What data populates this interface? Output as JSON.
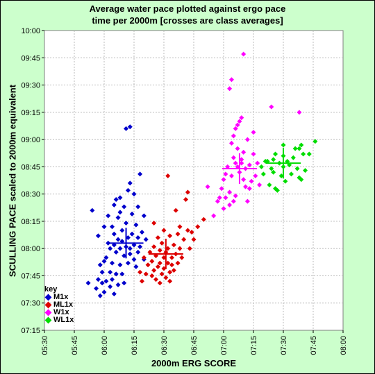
{
  "chart_data": {
    "type": "scatter",
    "title": [
      "Average water pace plotted against ergo pace",
      "time per 2000m [crosses are class averages]"
    ],
    "xlabel": "2000m ERG SCORE",
    "ylabel": "SCULLING PACE scaled to 2000m equivalent",
    "x_ticks": [
      "05:30",
      "05:45",
      "06:00",
      "06:15",
      "06:30",
      "06:45",
      "07:00",
      "07:15",
      "07:30",
      "07:45",
      "08:00"
    ],
    "y_ticks": [
      "10:00",
      "09:45",
      "09:30",
      "09:15",
      "09:00",
      "08:45",
      "08:30",
      "08:15",
      "08:00",
      "07:45",
      "07:30",
      "07:15"
    ],
    "xlim": [
      "05:30",
      "08:00"
    ],
    "ylim": [
      "07:15",
      "10:00"
    ],
    "grid": true,
    "legend_title": "key",
    "legend_position": "bottom-left",
    "series": [
      {
        "name": "M1x",
        "color": "#0000cc",
        "mean": [
          "06:11",
          "08:03"
        ],
        "points": [
          [
            "05:52",
            "07:41"
          ],
          [
            "05:54",
            "08:21"
          ],
          [
            "05:56",
            "07:38"
          ],
          [
            "05:57",
            "07:43"
          ],
          [
            "05:57",
            "08:07"
          ],
          [
            "05:58",
            "07:34"
          ],
          [
            "05:58",
            "07:51"
          ],
          [
            "05:59",
            "07:41"
          ],
          [
            "05:59",
            "07:47"
          ],
          [
            "06:00",
            "07:36"
          ],
          [
            "06:00",
            "07:53"
          ],
          [
            "06:00",
            "08:12"
          ],
          [
            "06:01",
            "07:42"
          ],
          [
            "06:01",
            "07:55"
          ],
          [
            "06:02",
            "08:03"
          ],
          [
            "06:02",
            "08:18"
          ],
          [
            "06:03",
            "07:39"
          ],
          [
            "06:03",
            "07:47"
          ],
          [
            "06:03",
            "08:00"
          ],
          [
            "06:04",
            "07:43"
          ],
          [
            "06:04",
            "07:52"
          ],
          [
            "06:04",
            "08:12"
          ],
          [
            "06:05",
            "08:02"
          ],
          [
            "06:05",
            "08:08"
          ],
          [
            "06:05",
            "07:35"
          ],
          [
            "06:06",
            "07:46"
          ],
          [
            "06:06",
            "07:58"
          ],
          [
            "06:06",
            "08:27"
          ],
          [
            "06:07",
            "07:40"
          ],
          [
            "06:07",
            "08:05"
          ],
          [
            "06:07",
            "08:17"
          ],
          [
            "06:08",
            "07:51"
          ],
          [
            "06:08",
            "08:00"
          ],
          [
            "06:08",
            "08:20"
          ],
          [
            "06:09",
            "07:46"
          ],
          [
            "06:09",
            "08:04"
          ],
          [
            "06:09",
            "08:10"
          ],
          [
            "06:10",
            "07:56"
          ],
          [
            "06:10",
            "08:23"
          ],
          [
            "06:10",
            "07:41"
          ],
          [
            "06:11",
            "08:01"
          ],
          [
            "06:11",
            "08:14"
          ],
          [
            "06:12",
            "07:52"
          ],
          [
            "06:12",
            "08:06"
          ],
          [
            "06:12",
            "08:32"
          ],
          [
            "06:13",
            "08:00"
          ],
          [
            "06:13",
            "08:36"
          ],
          [
            "06:13",
            "07:57"
          ],
          [
            "06:14",
            "08:08"
          ],
          [
            "06:14",
            "08:19"
          ],
          [
            "06:15",
            "07:54"
          ],
          [
            "06:15",
            "08:02"
          ],
          [
            "06:16",
            "08:13"
          ],
          [
            "06:16",
            "07:50"
          ],
          [
            "06:17",
            "08:06"
          ],
          [
            "06:17",
            "08:23"
          ],
          [
            "06:17",
            "07:58"
          ],
          [
            "06:18",
            "08:41"
          ],
          [
            "06:18",
            "08:01"
          ],
          [
            "06:19",
            "08:09"
          ],
          [
            "06:20",
            "08:18"
          ],
          [
            "06:20",
            "07:54"
          ],
          [
            "06:21",
            "08:05"
          ],
          [
            "06:11",
            "09:06"
          ],
          [
            "06:13",
            "09:07"
          ],
          [
            "06:08",
            "08:28"
          ],
          [
            "06:05",
            "08:24"
          ],
          [
            "06:15",
            "08:30"
          ]
        ]
      },
      {
        "name": "ML1x",
        "color": "#dd0000",
        "mean": [
          "06:31",
          "07:57"
        ],
        "points": [
          [
            "06:18",
            "07:47"
          ],
          [
            "06:19",
            "07:42"
          ],
          [
            "06:20",
            "07:55"
          ],
          [
            "06:21",
            "07:46"
          ],
          [
            "06:22",
            "07:51"
          ],
          [
            "06:23",
            "07:58"
          ],
          [
            "06:24",
            "07:45"
          ],
          [
            "06:24",
            "07:53"
          ],
          [
            "06:25",
            "08:01"
          ],
          [
            "06:25",
            "07:48"
          ],
          [
            "06:26",
            "07:56"
          ],
          [
            "06:26",
            "07:43"
          ],
          [
            "06:27",
            "07:50"
          ],
          [
            "06:27",
            "08:06"
          ],
          [
            "06:28",
            "07:52"
          ],
          [
            "06:28",
            "07:59"
          ],
          [
            "06:29",
            "07:46"
          ],
          [
            "06:29",
            "08:03"
          ],
          [
            "06:30",
            "07:55"
          ],
          [
            "06:30",
            "07:49"
          ],
          [
            "06:30",
            "08:10"
          ],
          [
            "06:31",
            "07:58"
          ],
          [
            "06:31",
            "07:44"
          ],
          [
            "06:32",
            "07:52"
          ],
          [
            "06:32",
            "08:00"
          ],
          [
            "06:33",
            "07:47"
          ],
          [
            "06:33",
            "08:07"
          ],
          [
            "06:34",
            "07:55"
          ],
          [
            "06:34",
            "07:51"
          ],
          [
            "06:35",
            "08:02"
          ],
          [
            "06:35",
            "07:48"
          ],
          [
            "06:36",
            "07:57"
          ],
          [
            "06:37",
            "08:08"
          ],
          [
            "06:37",
            "07:52"
          ],
          [
            "06:38",
            "08:12"
          ],
          [
            "06:38",
            "08:00"
          ],
          [
            "06:39",
            "07:55"
          ],
          [
            "06:40",
            "08:05"
          ],
          [
            "06:41",
            "08:27"
          ],
          [
            "06:42",
            "08:10"
          ],
          [
            "06:43",
            "08:00"
          ],
          [
            "06:44",
            "08:09"
          ],
          [
            "06:45",
            "08:05"
          ],
          [
            "06:47",
            "08:12"
          ],
          [
            "06:50",
            "08:16"
          ],
          [
            "06:32",
            "08:40"
          ],
          [
            "06:36",
            "08:21"
          ],
          [
            "06:42",
            "08:31"
          ],
          [
            "06:25",
            "08:14"
          ],
          [
            "06:28",
            "07:41"
          ],
          [
            "06:33",
            "07:42"
          ]
        ]
      },
      {
        "name": "W1x",
        "color": "#ff00ff",
        "mean": [
          "07:08",
          "08:44"
        ],
        "points": [
          [
            "06:52",
            "08:34"
          ],
          [
            "06:55",
            "08:18"
          ],
          [
            "06:57",
            "08:26"
          ],
          [
            "06:59",
            "08:33"
          ],
          [
            "07:00",
            "08:38"
          ],
          [
            "07:00",
            "08:22"
          ],
          [
            "07:01",
            "08:28"
          ],
          [
            "07:02",
            "08:45"
          ],
          [
            "07:03",
            "08:31"
          ],
          [
            "07:03",
            "08:24"
          ],
          [
            "07:04",
            "08:40"
          ],
          [
            "07:04",
            "08:58"
          ],
          [
            "07:05",
            "08:50"
          ],
          [
            "07:05",
            "09:02"
          ],
          [
            "07:06",
            "08:29"
          ],
          [
            "07:06",
            "08:47"
          ],
          [
            "07:07",
            "09:08"
          ],
          [
            "07:07",
            "08:55"
          ],
          [
            "07:08",
            "08:42"
          ],
          [
            "07:08",
            "09:10"
          ],
          [
            "07:09",
            "08:49"
          ],
          [
            "07:09",
            "09:12"
          ],
          [
            "07:10",
            "08:38"
          ],
          [
            "07:10",
            "08:53"
          ],
          [
            "07:10",
            "09:47"
          ],
          [
            "07:11",
            "08:44"
          ],
          [
            "07:11",
            "08:34"
          ],
          [
            "07:12",
            "08:26"
          ],
          [
            "07:12",
            "09:00"
          ],
          [
            "07:13",
            "08:46"
          ],
          [
            "07:14",
            "08:37"
          ],
          [
            "07:15",
            "08:52"
          ],
          [
            "07:15",
            "09:04"
          ],
          [
            "07:16",
            "08:40"
          ],
          [
            "07:17",
            "08:47"
          ],
          [
            "07:18",
            "08:35"
          ],
          [
            "07:03",
            "09:28"
          ],
          [
            "07:04",
            "09:33"
          ],
          [
            "07:05",
            "08:26"
          ],
          [
            "07:06",
            "09:06"
          ],
          [
            "07:07",
            "08:45"
          ],
          [
            "07:24",
            "09:18"
          ],
          [
            "07:38",
            "09:15"
          ],
          [
            "06:58",
            "08:28"
          ],
          [
            "07:01",
            "08:41"
          ],
          [
            "07:09",
            "08:47"
          ],
          [
            "07:13",
            "08:33"
          ]
        ]
      },
      {
        "name": "WL1x",
        "color": "#00dd00",
        "mean": [
          "07:30",
          "08:47"
        ],
        "points": [
          [
            "07:19",
            "08:45"
          ],
          [
            "07:20",
            "08:41"
          ],
          [
            "07:21",
            "08:48"
          ],
          [
            "07:22",
            "08:48"
          ],
          [
            "07:23",
            "08:35"
          ],
          [
            "07:24",
            "08:44"
          ],
          [
            "07:25",
            "08:49"
          ],
          [
            "07:25",
            "08:42"
          ],
          [
            "07:26",
            "08:33"
          ],
          [
            "07:26",
            "08:52"
          ],
          [
            "07:27",
            "08:32"
          ],
          [
            "07:28",
            "08:47"
          ],
          [
            "07:29",
            "08:40"
          ],
          [
            "07:30",
            "08:57"
          ],
          [
            "07:30",
            "08:51"
          ],
          [
            "07:30",
            "08:45"
          ],
          [
            "07:31",
            "08:37"
          ],
          [
            "07:32",
            "08:48"
          ],
          [
            "07:33",
            "08:46"
          ],
          [
            "07:34",
            "08:41"
          ],
          [
            "07:35",
            "08:50"
          ],
          [
            "07:36",
            "08:55"
          ],
          [
            "07:37",
            "08:44"
          ],
          [
            "07:38",
            "08:39"
          ],
          [
            "07:39",
            "08:57"
          ],
          [
            "07:40",
            "08:52"
          ],
          [
            "07:41",
            "08:43"
          ],
          [
            "07:43",
            "08:52"
          ],
          [
            "07:46",
            "08:59"
          ],
          [
            "07:38",
            "08:55"
          ],
          [
            "07:22",
            "08:48"
          ],
          [
            "07:39",
            "08:38"
          ]
        ]
      }
    ]
  }
}
